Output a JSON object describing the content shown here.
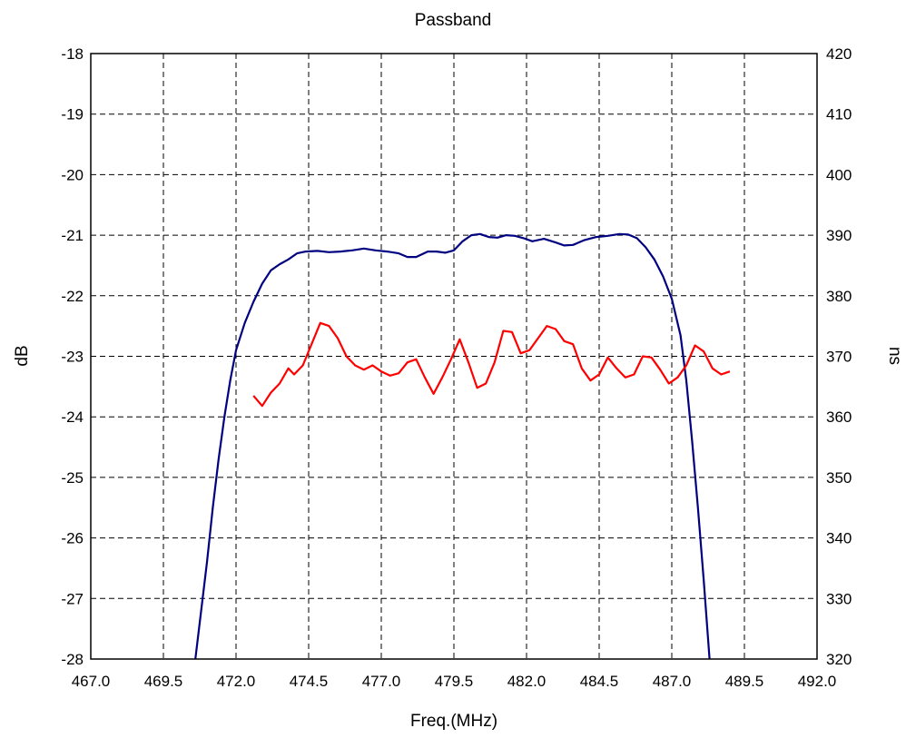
{
  "chart_data": {
    "type": "line",
    "title": "Passband",
    "xlabel": "Freq.(MHz)",
    "ylabel": "dB",
    "y2label": "ns",
    "xlim": [
      467.0,
      492.0
    ],
    "ylim": [
      -28,
      -18
    ],
    "y2lim": [
      320,
      420
    ],
    "grid": true,
    "x_ticks": [
      "467.0",
      "469.5",
      "472.0",
      "474.5",
      "477.0",
      "479.5",
      "482.0",
      "484.5",
      "487.0",
      "489.5",
      "492.0"
    ],
    "y_ticks": [
      "-18",
      "-19",
      "-20",
      "-21",
      "-22",
      "-23",
      "-24",
      "-25",
      "-26",
      "-27",
      "-28"
    ],
    "y2_ticks": [
      "420",
      "410",
      "400",
      "390",
      "380",
      "370",
      "360",
      "350",
      "340",
      "330",
      "320"
    ],
    "series": [
      {
        "axis": "left",
        "color": "#000080",
        "points": [
          [
            470.6,
            -28.0
          ],
          [
            470.8,
            -27.2
          ],
          [
            471.0,
            -26.4
          ],
          [
            471.2,
            -25.5
          ],
          [
            471.4,
            -24.7
          ],
          [
            471.6,
            -24.0
          ],
          [
            471.8,
            -23.4
          ],
          [
            472.0,
            -22.9
          ],
          [
            472.3,
            -22.45
          ],
          [
            472.6,
            -22.1
          ],
          [
            472.9,
            -21.8
          ],
          [
            473.2,
            -21.58
          ],
          [
            473.5,
            -21.48
          ],
          [
            473.8,
            -21.4
          ],
          [
            474.1,
            -21.3
          ],
          [
            474.4,
            -21.27
          ],
          [
            474.8,
            -21.26
          ],
          [
            475.2,
            -21.28
          ],
          [
            475.6,
            -21.27
          ],
          [
            476.0,
            -21.25
          ],
          [
            476.4,
            -21.22
          ],
          [
            476.8,
            -21.25
          ],
          [
            477.2,
            -21.27
          ],
          [
            477.6,
            -21.3
          ],
          [
            477.9,
            -21.36
          ],
          [
            478.2,
            -21.36
          ],
          [
            478.6,
            -21.27
          ],
          [
            478.9,
            -21.27
          ],
          [
            479.2,
            -21.29
          ],
          [
            479.5,
            -21.25
          ],
          [
            479.8,
            -21.1
          ],
          [
            480.1,
            -21.0
          ],
          [
            480.4,
            -20.98
          ],
          [
            480.7,
            -21.03
          ],
          [
            481.0,
            -21.04
          ],
          [
            481.3,
            -21.0
          ],
          [
            481.6,
            -21.01
          ],
          [
            481.9,
            -21.05
          ],
          [
            482.2,
            -21.1
          ],
          [
            482.6,
            -21.06
          ],
          [
            483.0,
            -21.12
          ],
          [
            483.3,
            -21.17
          ],
          [
            483.6,
            -21.16
          ],
          [
            484.0,
            -21.08
          ],
          [
            484.4,
            -21.03
          ],
          [
            484.8,
            -21.01
          ],
          [
            485.2,
            -20.98
          ],
          [
            485.5,
            -20.99
          ],
          [
            485.8,
            -21.05
          ],
          [
            486.1,
            -21.2
          ],
          [
            486.4,
            -21.4
          ],
          [
            486.7,
            -21.68
          ],
          [
            487.0,
            -22.05
          ],
          [
            487.3,
            -22.65
          ],
          [
            487.5,
            -23.4
          ],
          [
            487.7,
            -24.4
          ],
          [
            487.9,
            -25.5
          ],
          [
            488.1,
            -26.7
          ],
          [
            488.3,
            -28.0
          ]
        ]
      },
      {
        "axis": "right",
        "color": "#ff0000",
        "points": [
          [
            472.6,
            363.5
          ],
          [
            472.9,
            361.8
          ],
          [
            473.2,
            364.0
          ],
          [
            473.5,
            365.5
          ],
          [
            473.8,
            368.0
          ],
          [
            474.0,
            367.0
          ],
          [
            474.3,
            368.5
          ],
          [
            474.6,
            372.0
          ],
          [
            474.9,
            375.5
          ],
          [
            475.2,
            375.0
          ],
          [
            475.5,
            373.0
          ],
          [
            475.8,
            370.0
          ],
          [
            476.1,
            368.5
          ],
          [
            476.4,
            367.8
          ],
          [
            476.7,
            368.5
          ],
          [
            477.0,
            367.5
          ],
          [
            477.3,
            366.8
          ],
          [
            477.6,
            367.2
          ],
          [
            477.9,
            369.0
          ],
          [
            478.2,
            369.5
          ],
          [
            478.5,
            366.5
          ],
          [
            478.8,
            363.8
          ],
          [
            479.1,
            366.5
          ],
          [
            479.4,
            369.5
          ],
          [
            479.7,
            372.8
          ],
          [
            480.0,
            369.0
          ],
          [
            480.3,
            364.8
          ],
          [
            480.6,
            365.5
          ],
          [
            480.9,
            369.0
          ],
          [
            481.2,
            374.2
          ],
          [
            481.5,
            374.0
          ],
          [
            481.8,
            370.5
          ],
          [
            482.1,
            371.0
          ],
          [
            482.4,
            373.0
          ],
          [
            482.7,
            375.0
          ],
          [
            483.0,
            374.5
          ],
          [
            483.3,
            372.5
          ],
          [
            483.6,
            372.0
          ],
          [
            483.9,
            368.0
          ],
          [
            484.2,
            366.0
          ],
          [
            484.5,
            367.0
          ],
          [
            484.8,
            369.8
          ],
          [
            485.1,
            368.0
          ],
          [
            485.4,
            366.5
          ],
          [
            485.7,
            367.0
          ],
          [
            486.0,
            370.0
          ],
          [
            486.3,
            369.8
          ],
          [
            486.6,
            367.8
          ],
          [
            486.9,
            365.5
          ],
          [
            487.2,
            366.5
          ],
          [
            487.5,
            368.5
          ],
          [
            487.8,
            371.8
          ],
          [
            488.1,
            370.8
          ],
          [
            488.4,
            368.0
          ],
          [
            488.7,
            367.0
          ],
          [
            489.0,
            367.5
          ]
        ]
      }
    ]
  }
}
